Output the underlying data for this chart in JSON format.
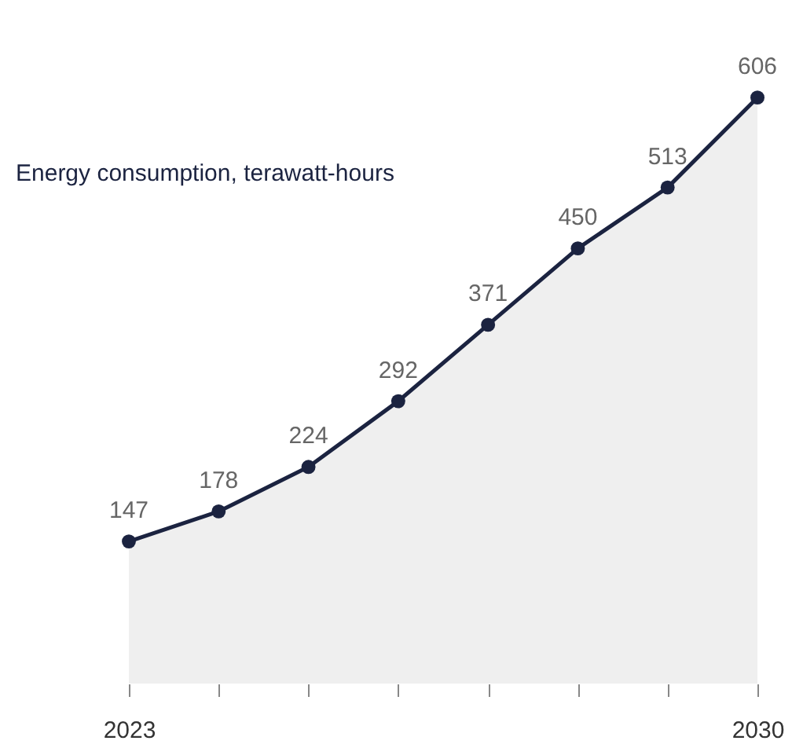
{
  "chart_data": {
    "type": "area",
    "title": "Energy consumption, terawatt-hours",
    "x": [
      2023,
      2024,
      2025,
      2026,
      2027,
      2028,
      2029,
      2030
    ],
    "xlim": [
      2023,
      2030
    ],
    "xticks": [
      2023,
      {
        "value": 2024,
        "label": null
      },
      {
        "value": 2025,
        "label": null
      },
      {
        "value": 2026,
        "label": null
      },
      {
        "value": 2027,
        "label": null
      },
      {
        "value": 2028,
        "label": null
      },
      {
        "value": 2029,
        "label": null
      },
      2030
    ],
    "series": [
      {
        "color": "#1b2340",
        "values": [
          147,
          178,
          224,
          292,
          371,
          450,
          513,
          606
        ]
      }
    ],
    "marker": "circle",
    "data_labels": true,
    "grid": false,
    "tick_labels": "x"
  }
}
